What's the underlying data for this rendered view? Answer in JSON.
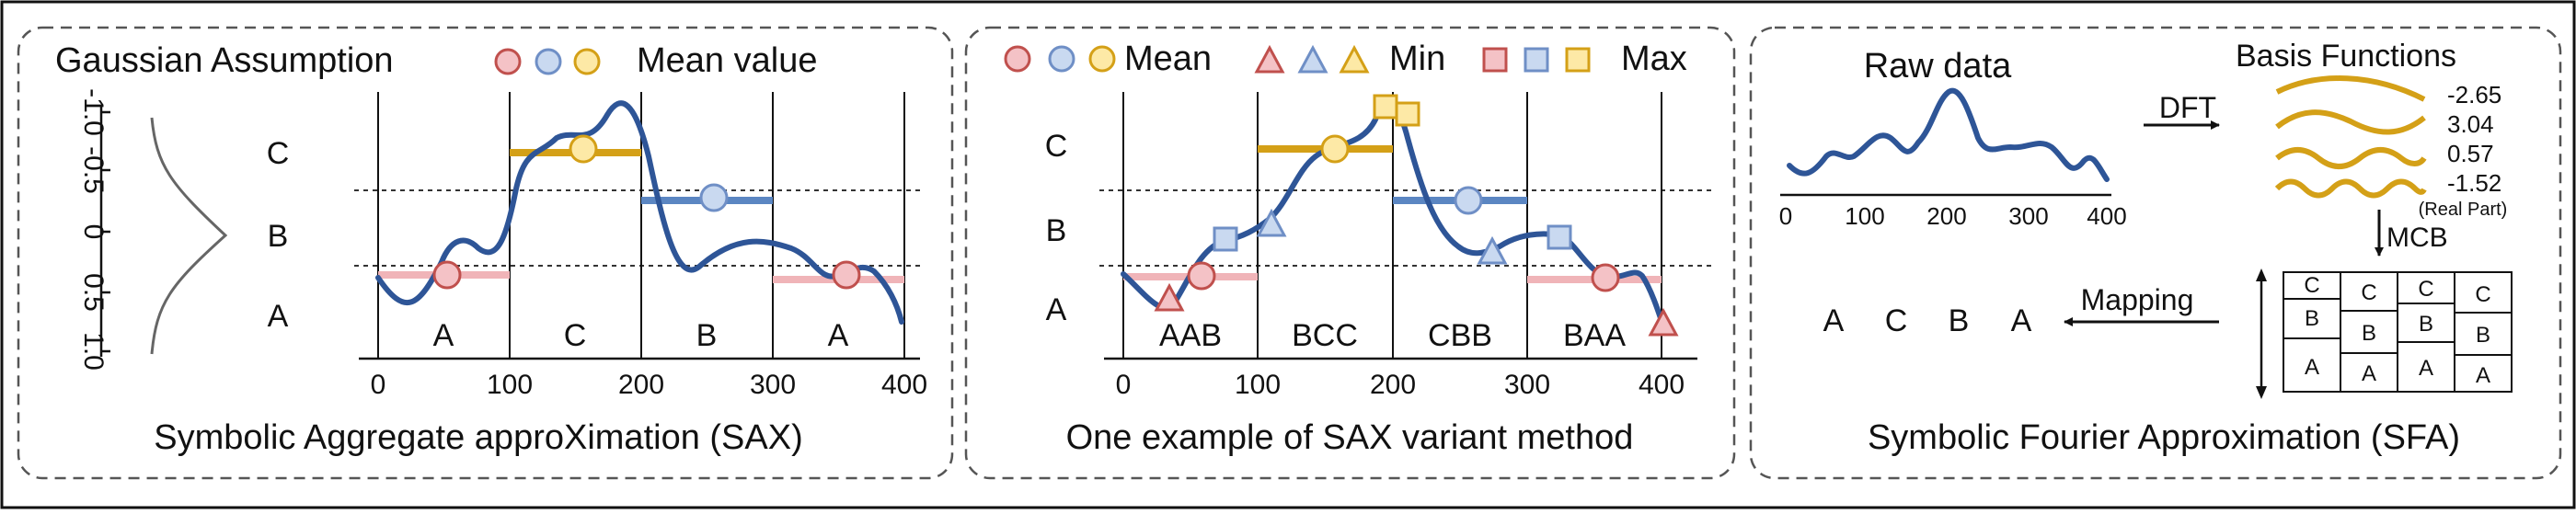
{
  "colors": {
    "curve": "#2e5597",
    "red_fill": "#f4c2c6",
    "red_stroke": "#c0504d",
    "blue_fill": "#c9d9f0",
    "blue_stroke": "#6f8fc6",
    "yellow_fill": "#fde9a6",
    "yellow_stroke": "#d4a017",
    "c_bar": "#d4a017",
    "b_bar": "#5b86c2",
    "a_bar": "#f0b4b8",
    "basis": "#d4a017",
    "grey_curve": "#666666"
  },
  "sax": {
    "gaussian_label": "Gaussian Assumption",
    "mean_legend_label": "Mean value",
    "y_ticks": [
      "-1.0",
      "-0.5",
      "0",
      "0.5",
      "1.0"
    ],
    "band_letters": [
      "C",
      "B",
      "A"
    ],
    "segment_letters": [
      "A",
      "C",
      "B",
      "A"
    ],
    "segment_means": [
      0.3,
      -0.7,
      -0.28,
      0.37
    ],
    "x_ticks": [
      "0",
      "100",
      "200",
      "300",
      "400"
    ],
    "caption": "Symbolic Aggregate approXimation (SAX)"
  },
  "variant": {
    "legend": {
      "mean": "Mean",
      "min": "Min",
      "max": "Max"
    },
    "band_letters": [
      "C",
      "B",
      "A"
    ],
    "segment_words": [
      "AAB",
      "BCC",
      "CBB",
      "BAA"
    ],
    "x_ticks": [
      "0",
      "100",
      "200",
      "300",
      "400"
    ],
    "caption": "One example of SAX variant method"
  },
  "sfa": {
    "raw_label": "Raw data",
    "x_ticks": [
      "0",
      "100",
      "200",
      "300",
      "400"
    ],
    "dft_label": "DFT",
    "basis_title": "Basis Functions",
    "coefficients": [
      "-2.65",
      "3.04",
      "0.57",
      "-1.52"
    ],
    "real_part_label": "(Real Part)",
    "mcb_label": "MCB",
    "mapping_label": "Mapping",
    "word_letters": [
      "A",
      "C",
      "B",
      "A"
    ],
    "grid_columns": [
      [
        "C",
        "B",
        "A"
      ],
      [
        "C",
        "B",
        "A"
      ],
      [
        "C",
        "B",
        "A"
      ],
      [
        "C",
        "B",
        "A"
      ]
    ],
    "caption": "Symbolic Fourier Approximation (SFA)"
  }
}
